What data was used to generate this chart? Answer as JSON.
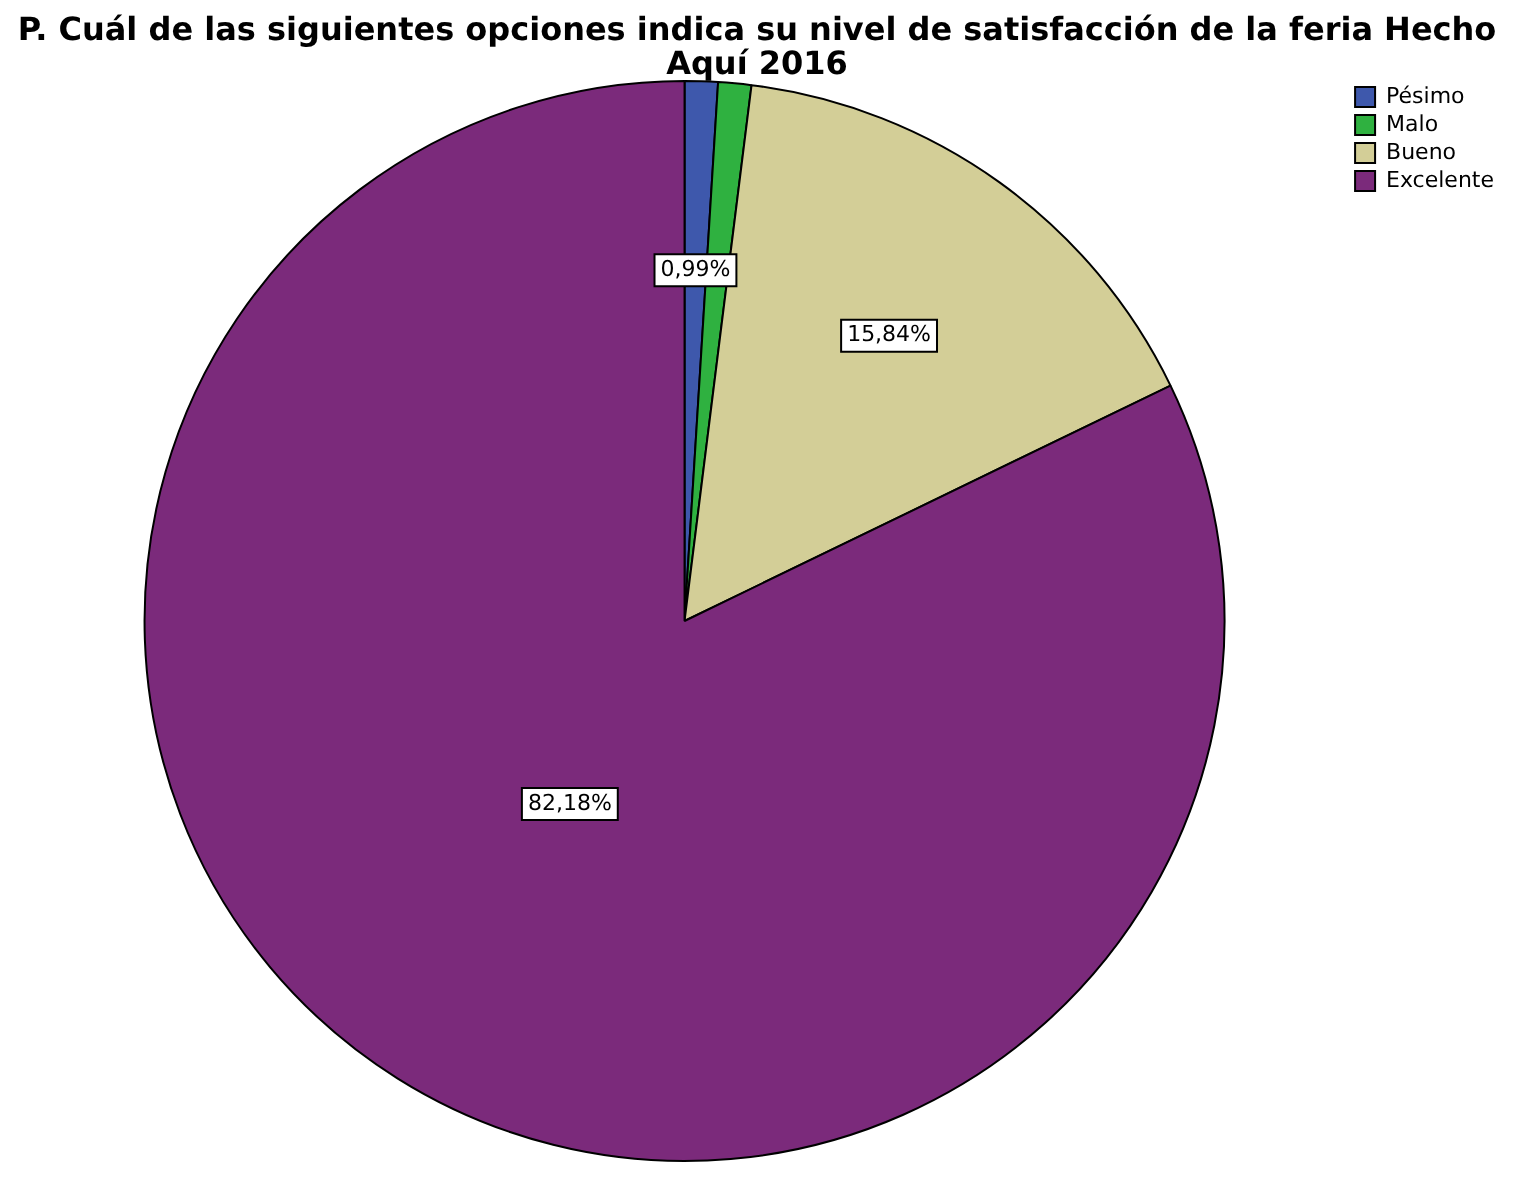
{
  "chart_data": {
    "type": "pie",
    "title": "P. Cuál de las siguientes opciones indica su nivel de satisfacción de la feria Hecho Aquí 2016",
    "categories": [
      "Pésimo",
      "Malo",
      "Bueno",
      "Excelente"
    ],
    "values": [
      0.99,
      0.99,
      15.84,
      82.18
    ],
    "colors": [
      "#3e58ac",
      "#2fb140",
      "#d3ce97",
      "#7b2a7b"
    ],
    "value_labels": [
      "0,99%",
      null,
      "15,84%",
      "82,18%"
    ],
    "legend": "top right"
  }
}
